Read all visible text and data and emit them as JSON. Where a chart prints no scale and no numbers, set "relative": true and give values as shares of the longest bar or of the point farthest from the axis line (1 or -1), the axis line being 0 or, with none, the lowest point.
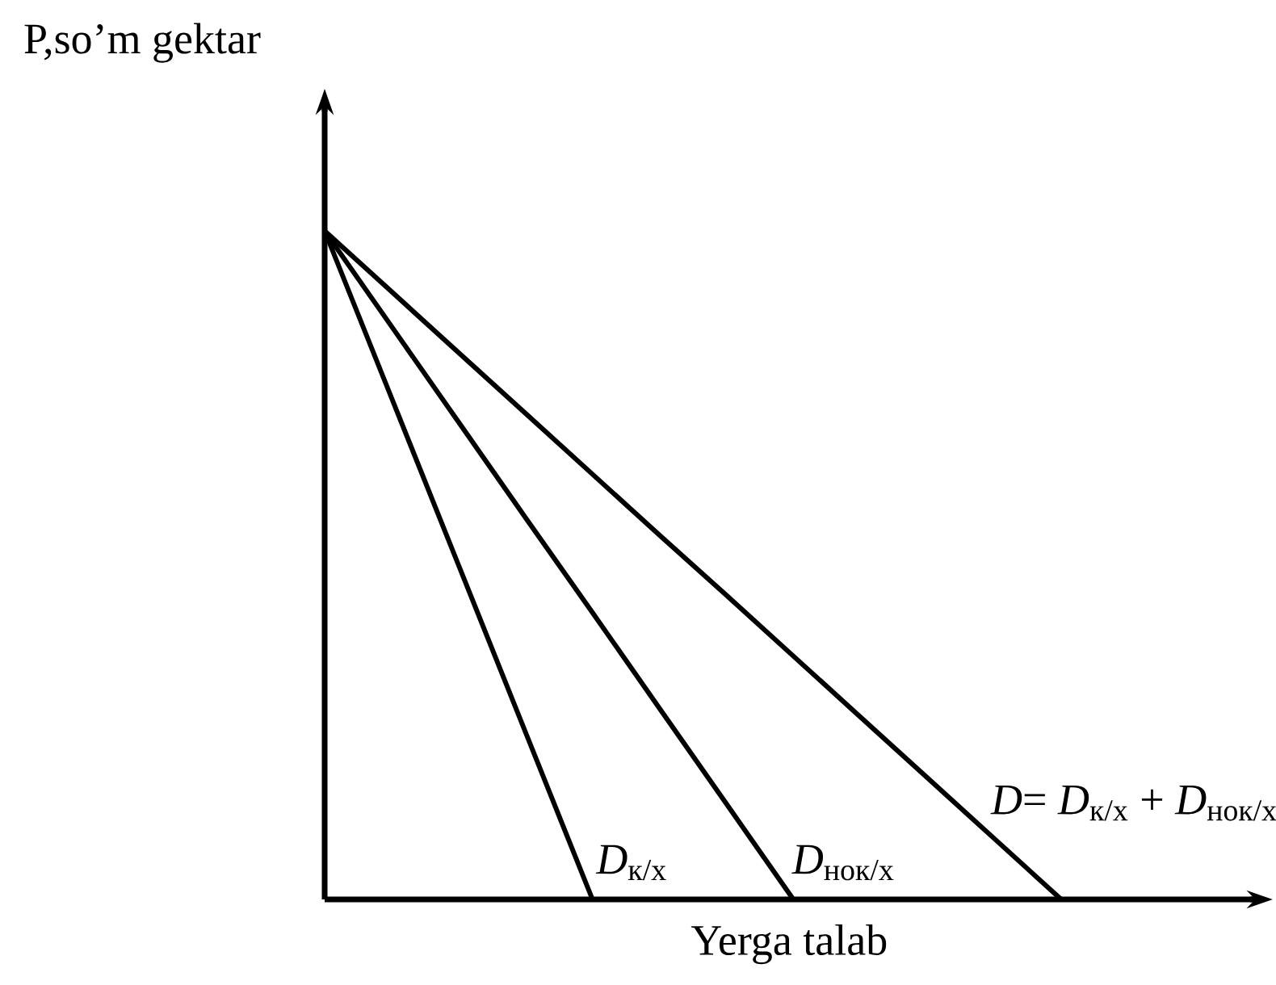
{
  "chart_data": {
    "type": "line",
    "relative": true,
    "xlabel": "Yerga talab",
    "ylabel": "P,so’m gektar",
    "legend": false,
    "marker": "none",
    "line_style": "solid",
    "categories": [
      null,
      null,
      null,
      null,
      null,
      null,
      null,
      null,
      null,
      null,
      null,
      null
    ],
    "series": [
      {
        "name": "*D*$_{к/х}$",
        "color": "#000000",
        "values": [
          1,
          0.75,
          0.5,
          0.25,
          0,
          null,
          null,
          null,
          null,
          null,
          null,
          null
        ]
      },
      {
        "name": "*D*$_{нок/х}$",
        "color": "#000000",
        "values": [
          1,
          0.857,
          0.714,
          0.571,
          0.429,
          0.286,
          0.143,
          0,
          null,
          null,
          null,
          null
        ]
      },
      {
        "name": "*D*= *D*$_{к/х}$ + *D*$_{нок/х}$",
        "color": "#000000",
        "values": [
          1,
          0.909,
          0.818,
          0.727,
          0.636,
          0.545,
          0.455,
          0.364,
          0.273,
          0.182,
          0.091,
          0
        ]
      }
    ]
  }
}
